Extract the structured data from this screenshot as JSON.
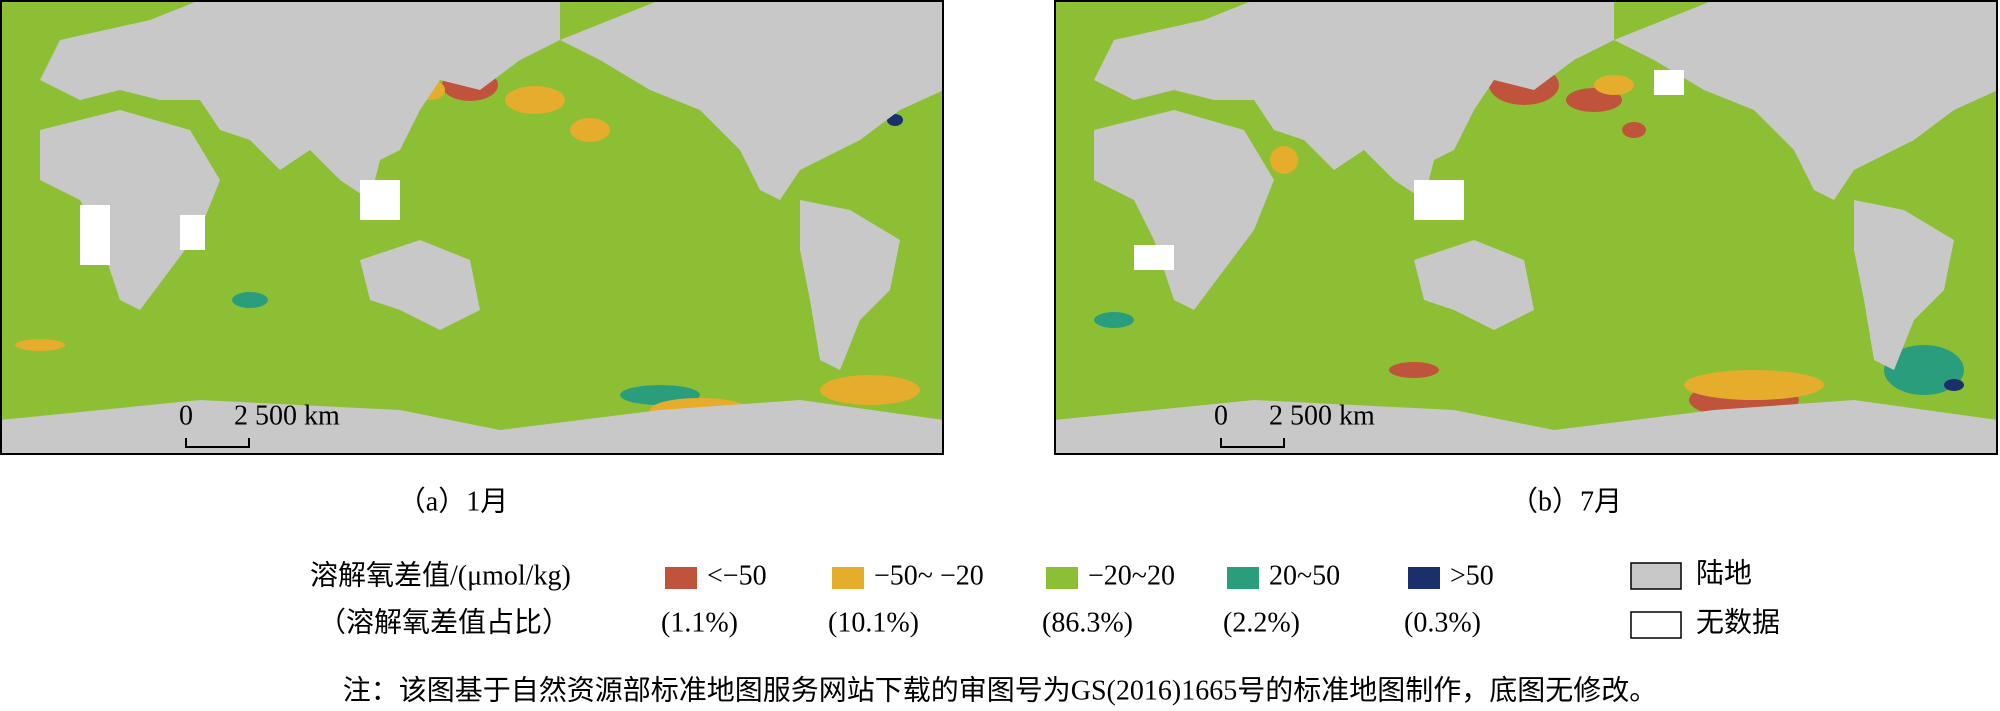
{
  "panels": [
    {
      "caption": "（a）1月",
      "scale_zero": "0",
      "scale_label": "2 500 km"
    },
    {
      "caption": "（b）7月",
      "scale_zero": "0",
      "scale_label": "2 500 km"
    }
  ],
  "legend": {
    "title": "溶解氧差值/(μmol/kg)",
    "subtitle": "（溶解氧差值占比）",
    "items": [
      {
        "label": "<−50",
        "share": "(1.1%)",
        "color": "#c0533b"
      },
      {
        "label": "−50~ −20",
        "share": "(10.1%)",
        "color": "#e6ac2c"
      },
      {
        "label": "−20~20",
        "share": "(86.3%)",
        "color": "#8cbf33"
      },
      {
        "label": "20~50",
        "share": "(2.2%)",
        "color": "#2a9e7c"
      },
      {
        "label": ">50",
        "share": "(0.3%)",
        "color": "#1b2f6b"
      }
    ],
    "land": "陆地",
    "no_data": "无数据"
  },
  "note": "注：该图基于自然资源部标准地图服务网站下载的审图号为GS(2016)1665号的标准地图制作，底图无修改。"
}
